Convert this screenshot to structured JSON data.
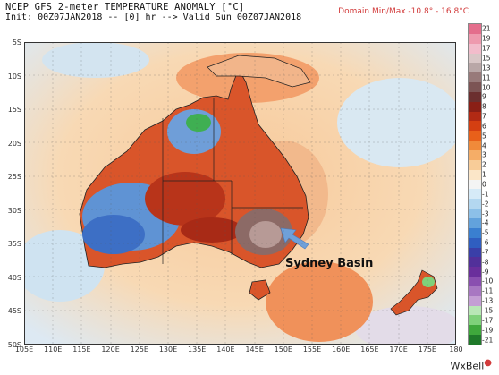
{
  "header": {
    "title": "NCEP GFS 2-meter TEMPERATURE ANOMALY [°C]",
    "init_line": "Init: 00Z07JAN2018 -- [0] hr --> Valid Sun 00Z07JAN2018",
    "domain_minmax": "Domain Min/Max -10.8° - 16.8°C"
  },
  "map": {
    "lat_labels": [
      "5S",
      "10S",
      "15S",
      "20S",
      "25S",
      "30S",
      "35S",
      "40S",
      "45S",
      "50S"
    ],
    "lon_labels": [
      "105E",
      "110E",
      "115E",
      "120E",
      "125E",
      "130E",
      "135E",
      "140E",
      "145E",
      "150E",
      "155E",
      "160E",
      "165E",
      "170E",
      "175E",
      "180"
    ],
    "annotation": "Sydney Basin",
    "arrow_color": "#6fa0d8"
  },
  "colorbar": {
    "labels": [
      "21",
      "19",
      "17",
      "15",
      "13",
      "11",
      "10",
      "9",
      "8",
      "7",
      "6",
      "5",
      "4",
      "3",
      "2",
      "1",
      "0",
      "-1",
      "-2",
      "-3",
      "-4",
      "-5",
      "-6",
      "-7",
      "-8",
      "-9",
      "-10",
      "-11",
      "-13",
      "-15",
      "-17",
      "-19",
      "-21"
    ],
    "colors": [
      "#e46e8c",
      "#ee9aae",
      "#f2bccb",
      "#d9c7c7",
      "#b9a7a7",
      "#987a7a",
      "#7c5454",
      "#6b2f2f",
      "#8a1f16",
      "#b22a14",
      "#d43f12",
      "#e8601a",
      "#f08a3a",
      "#f5ad67",
      "#f8cc98",
      "#fbe6c8",
      "#f4f4f4",
      "#d6eaf7",
      "#b3d7f0",
      "#8cc0e8",
      "#62a2dc",
      "#3a7fd0",
      "#2f5ec0",
      "#3a3fa8",
      "#52309a",
      "#6a2f9c",
      "#8a4fb0",
      "#a877c2",
      "#c49ed4",
      "#b9e7b6",
      "#7fd17a",
      "#3fa83c",
      "#1f7a2a"
    ]
  },
  "footer": {
    "brand": "WxBell"
  }
}
